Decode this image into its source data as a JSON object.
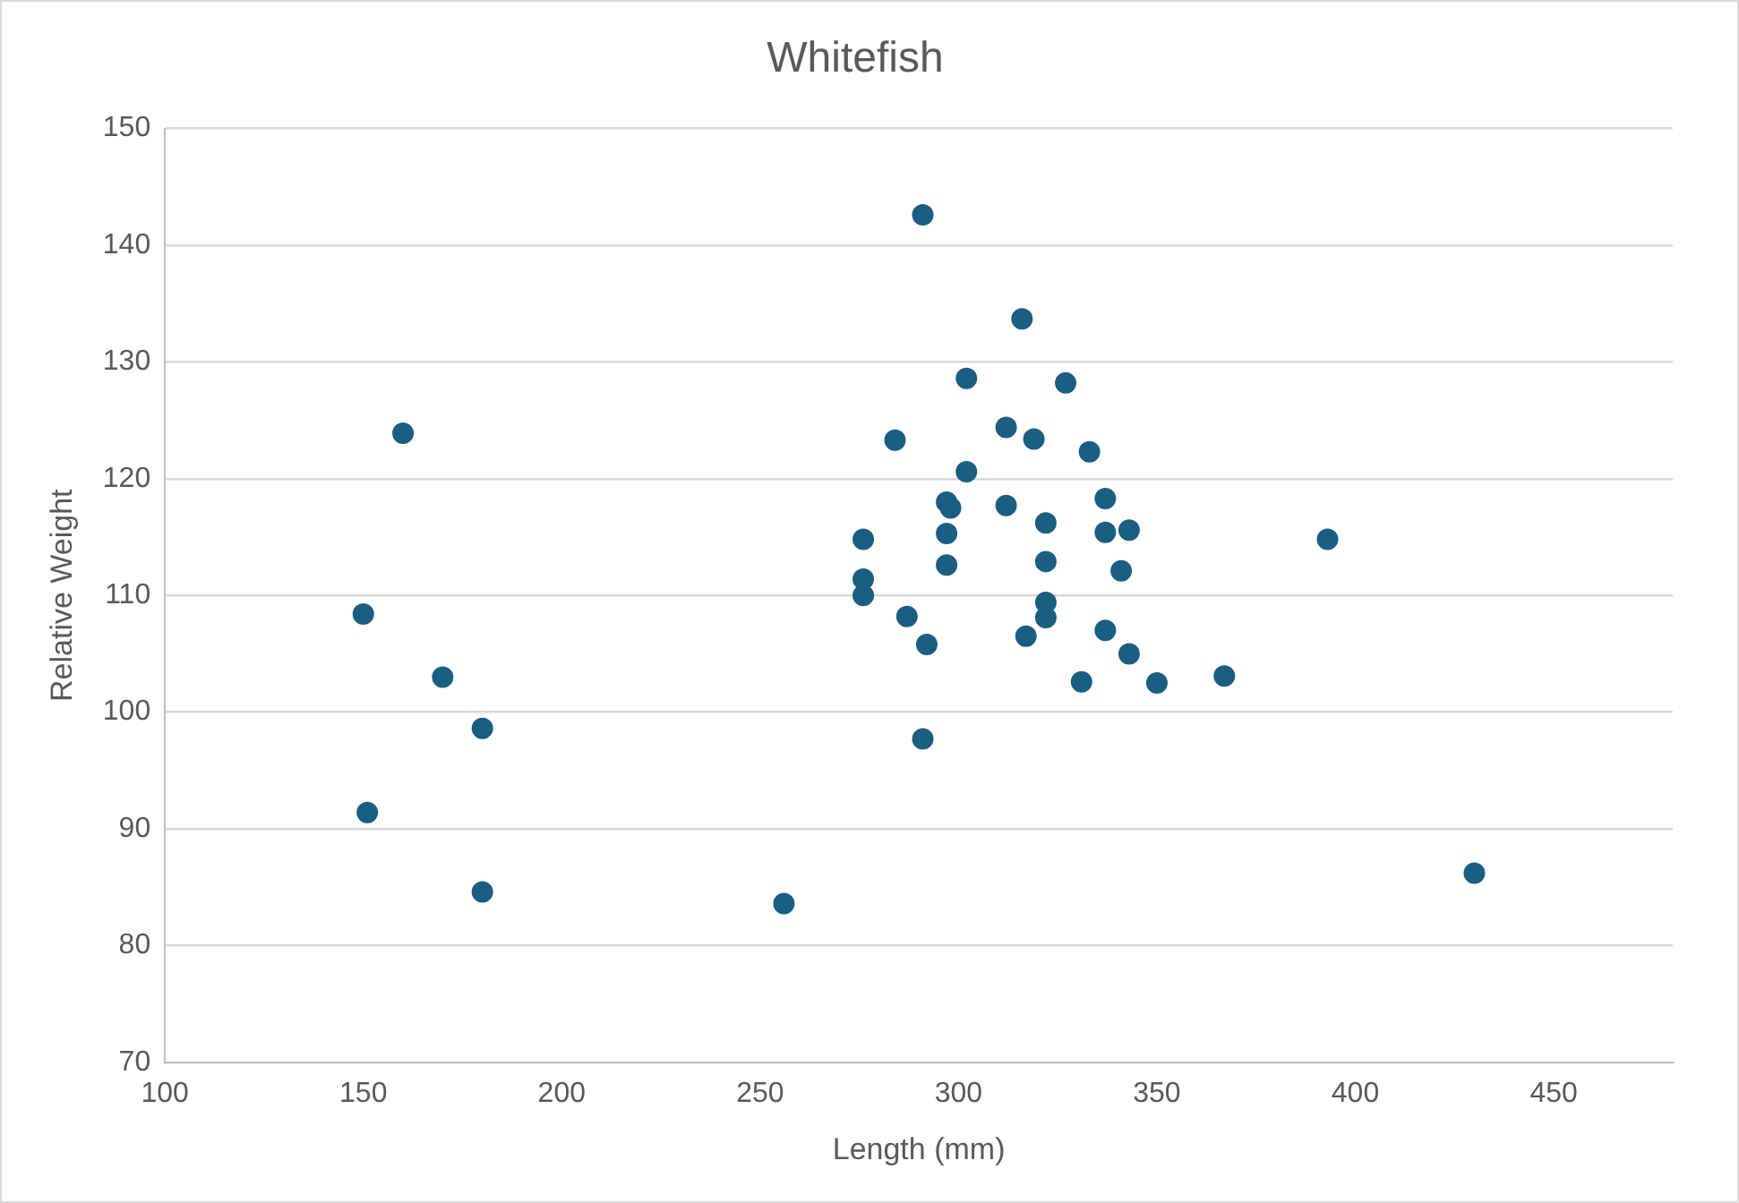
{
  "chart_data": {
    "type": "scatter",
    "title": "Whitefish",
    "xlabel": "Length (mm)",
    "ylabel": "Relative Weight",
    "x": [
      291,
      316,
      302,
      327,
      284,
      312,
      319,
      333,
      302,
      160,
      297,
      298,
      312,
      337,
      322,
      337,
      343,
      297,
      276,
      393,
      297,
      322,
      341,
      276,
      276,
      322,
      287,
      322,
      150,
      337,
      317,
      292,
      343,
      170,
      331,
      350,
      367,
      180,
      291,
      151,
      180,
      256,
      430
    ],
    "series": [
      {
        "color": "#1b5e82",
        "values": [
          142.6,
          133.7,
          128.6,
          128.2,
          123.3,
          124.4,
          123.4,
          122.3,
          120.6,
          123.9,
          118,
          117.5,
          117.7,
          118.3,
          116.2,
          115.4,
          115.6,
          115.3,
          114.8,
          114.8,
          112.6,
          112.9,
          112.1,
          111.4,
          110,
          109.4,
          108.2,
          108.1,
          108.4,
          107,
          106.5,
          105.8,
          105,
          103,
          102.6,
          102.5,
          103.1,
          98.6,
          97.7,
          91.4,
          84.6,
          83.6,
          86.2
        ]
      }
    ],
    "xlim": [
      100,
      480
    ],
    "xticks": [
      100,
      150,
      200,
      250,
      300,
      350,
      400,
      450
    ],
    "ylim": [
      70,
      150
    ],
    "yticks": [
      70,
      80,
      90,
      100,
      110,
      120,
      130,
      140,
      150
    ],
    "grid": "y",
    "legend": false,
    "marker": "circle"
  }
}
